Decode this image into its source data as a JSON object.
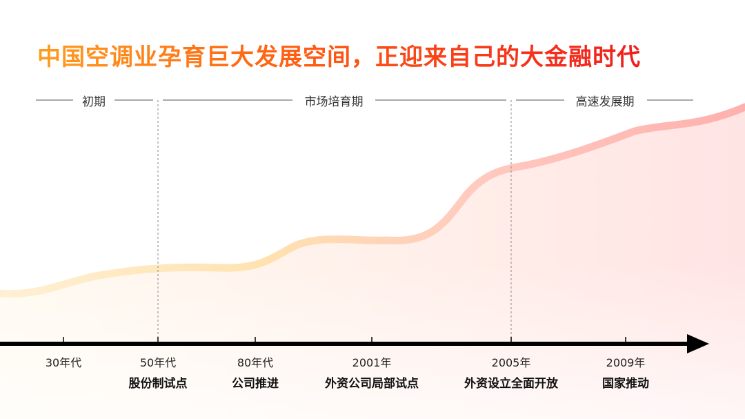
{
  "title": "中国空调业孕育巨大发展空间，正迎来自己的大金融时代",
  "phases": [
    "初期",
    "市场培育期",
    "高速发展期"
  ],
  "timeline": [
    {
      "year": "30年代",
      "event": ""
    },
    {
      "year": "50年代",
      "event": "股份制试点"
    },
    {
      "year": "80年代",
      "event": "公司推进"
    },
    {
      "year": "2001年",
      "event": "外资公司局部试点"
    },
    {
      "year": "2005年",
      "event": "外资设立全面开放"
    },
    {
      "year": "2009年",
      "event": "国家推动"
    }
  ],
  "colors": {
    "curve_start": "#ffe6a8",
    "curve_end": "#ffb6b0",
    "axis": "#000000"
  }
}
